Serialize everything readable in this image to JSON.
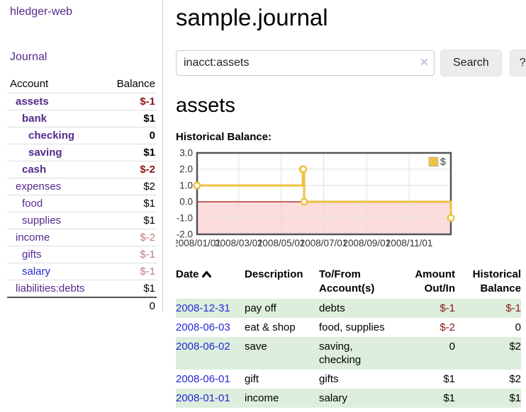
{
  "app": {
    "brand": "hledger-web",
    "nav_journal": "Journal"
  },
  "sidebar": {
    "header": {
      "account": "Account",
      "balance": "Balance"
    },
    "accounts": [
      {
        "name": "assets",
        "indent": 1,
        "bold": true,
        "balance": "$-1",
        "balance_style": "neg"
      },
      {
        "name": "bank",
        "indent": 2,
        "bold": true,
        "balance": "$1",
        "balance_style": ""
      },
      {
        "name": "checking",
        "indent": 3,
        "bold": true,
        "balance": "0",
        "balance_style": ""
      },
      {
        "name": "saving",
        "indent": 3,
        "bold": true,
        "balance": "$1",
        "balance_style": ""
      },
      {
        "name": "cash",
        "indent": 2,
        "bold": true,
        "balance": "$-2",
        "balance_style": "neg"
      },
      {
        "name": "expenses",
        "indent": 1,
        "bold": false,
        "balance": "$2",
        "balance_style": ""
      },
      {
        "name": "food",
        "indent": 2,
        "bold": false,
        "balance": "$1",
        "balance_style": ""
      },
      {
        "name": "supplies",
        "indent": 2,
        "bold": false,
        "balance": "$1",
        "balance_style": ""
      },
      {
        "name": "income",
        "indent": 1,
        "bold": false,
        "balance": "$-2",
        "balance_style": "rose"
      },
      {
        "name": "gifts",
        "indent": 2,
        "bold": false,
        "balance": "$-1",
        "balance_style": "rose"
      },
      {
        "name": "salary",
        "indent": 2,
        "bold": false,
        "balance": "$-1",
        "balance_style": "rose",
        "unvisited": true
      },
      {
        "name": "liabilities:debts",
        "indent": 1,
        "bold": false,
        "balance": "$1",
        "balance_style": ""
      }
    ],
    "total": "0"
  },
  "header": {
    "title": "sample.journal"
  },
  "search": {
    "value": "inacct:assets",
    "clear_icon": "×",
    "button_label": "Search",
    "help_label": "?"
  },
  "account_page": {
    "title": "assets",
    "chart_label": "Historical Balance:"
  },
  "chart_data": {
    "type": "line",
    "title": "Historical Balance:",
    "step": true,
    "grid": true,
    "legend": {
      "label": "$",
      "position": "top-right"
    },
    "series": [
      {
        "name": "$",
        "color": "#edc240",
        "points": [
          {
            "x": "2008-01-01",
            "y": 1
          },
          {
            "x": "2008-06-01",
            "y": 2
          },
          {
            "x": "2008-06-02",
            "y": 2
          },
          {
            "x": "2008-06-03",
            "y": 0
          },
          {
            "x": "2008-12-31",
            "y": -1
          }
        ]
      }
    ],
    "xmin": "2008-01-01",
    "xmax": "2008-12-31",
    "ylim": [
      -2.0,
      3.0
    ],
    "yticks": [
      3.0,
      2.0,
      1.0,
      0.0,
      -1.0,
      -2.0
    ],
    "xticks": [
      "2008/01/01",
      "2008/03/01",
      "2008/05/01",
      "2008/07/01",
      "2008/09/01",
      "2008/11/01"
    ],
    "negative_region_color": "#fcdcdc",
    "zero_line_color": "#9e0b0b",
    "border_color": "#555555",
    "gridline_color": "#e0e0e0"
  },
  "register": {
    "header": {
      "date": "Date",
      "description": "Description",
      "accounts": "To/From Account(s)",
      "amount": "Amount Out/In",
      "balance": "Historical Balance"
    },
    "rows": [
      {
        "date": "2008-12-31",
        "description": "pay off",
        "accounts": "debts",
        "amount": "$-1",
        "amount_neg": true,
        "balance": "$-1",
        "balance_neg": true
      },
      {
        "date": "2008-06-03",
        "description": "eat & shop",
        "accounts": "food, supplies",
        "amount": "$-2",
        "amount_neg": true,
        "balance": "0",
        "balance_neg": false
      },
      {
        "date": "2008-06-02",
        "description": "save",
        "accounts": "saving,\nchecking",
        "amount": "0",
        "amount_neg": false,
        "balance": "$2",
        "balance_neg": false
      },
      {
        "date": "2008-06-01",
        "description": "gift",
        "accounts": "gifts",
        "amount": "$1",
        "amount_neg": false,
        "balance": "$2",
        "balance_neg": false
      },
      {
        "date": "2008-01-01",
        "description": "income",
        "accounts": "salary",
        "amount": "$1",
        "amount_neg": false,
        "balance": "$1",
        "balance_neg": false
      }
    ]
  }
}
